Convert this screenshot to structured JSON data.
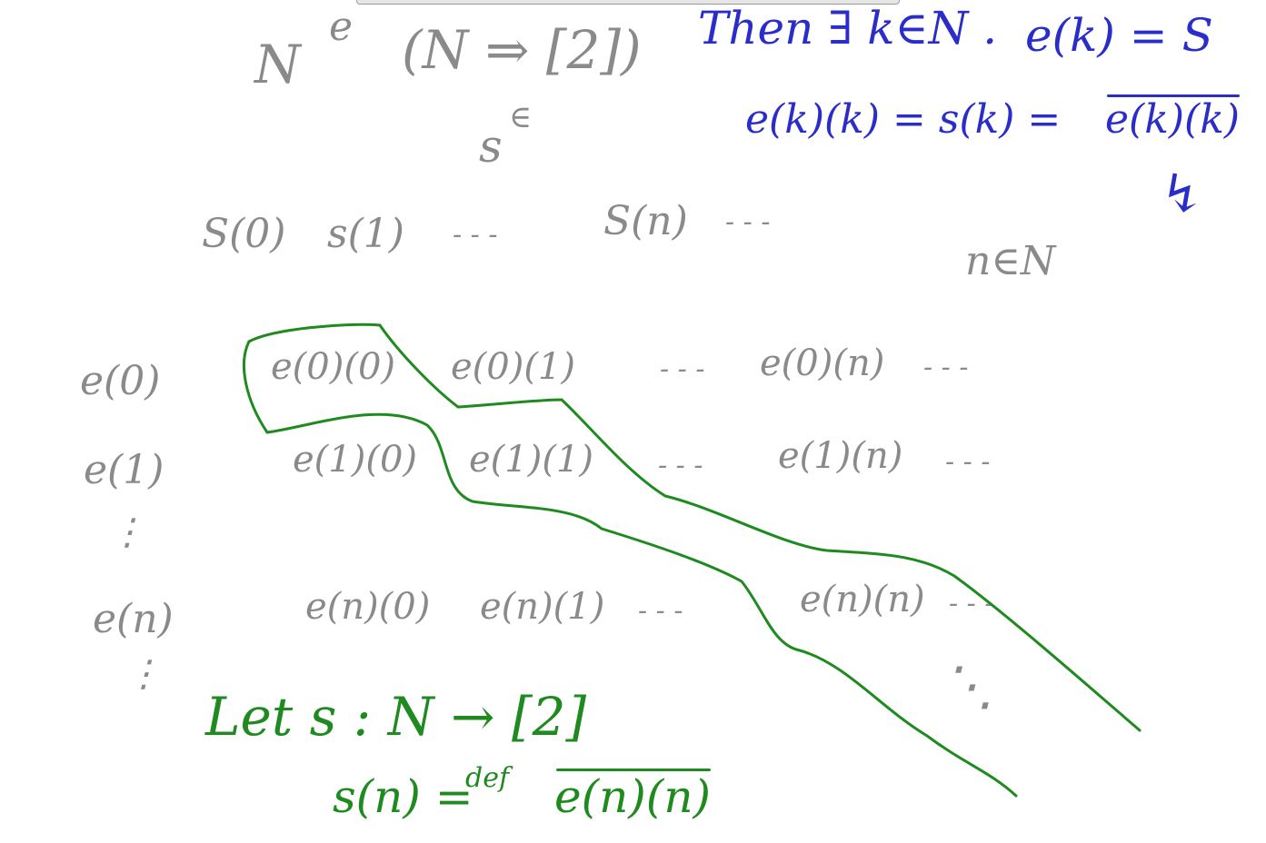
{
  "colors": {
    "gray_ink": "#8a8a8a",
    "blue_ink": "#2a2dc9",
    "green_ink": "#1f8a1f",
    "canvas": "#ffffff"
  },
  "header": {
    "domain_n": "N",
    "arrow_label": "e",
    "codomain": "(N ⇒ [2])",
    "s_elem": "s",
    "s_arrow": "∈"
  },
  "sequence": {
    "s0": "S(0)",
    "s1": "s(1)",
    "dots1": "- - -",
    "sn": "S(n)",
    "dots2": "- - -",
    "n_in_N": "n∈N"
  },
  "claim": {
    "line1_a": "Then ∃ k∈N .",
    "line1_b": "e(k) = S",
    "line2_a": "e(k)(k) = s(k) =",
    "line2_b": "e(k)(k)",
    "contradiction": "↯"
  },
  "table": {
    "row_labels": [
      "e(0)",
      "e(1)",
      "⋮",
      "e(n)",
      "⋮"
    ],
    "row0": [
      "e(0)(0)",
      "e(0)(1)",
      "- - -",
      "e(0)(n)",
      "- - -"
    ],
    "row1": [
      "e(1)(0)",
      "e(1)(1)",
      "- - -",
      "e(1)(n)",
      "- - -"
    ],
    "rown": [
      "e(n)(0)",
      "e(n)(1)",
      "- - -",
      "e(n)(n)",
      "- - -"
    ],
    "diag_dots": "⋱"
  },
  "definition": {
    "line1": "Let s : N → [2]",
    "line2_a": "s(n) =",
    "line2_def": "def",
    "line2_b": "e(n)(n)"
  }
}
